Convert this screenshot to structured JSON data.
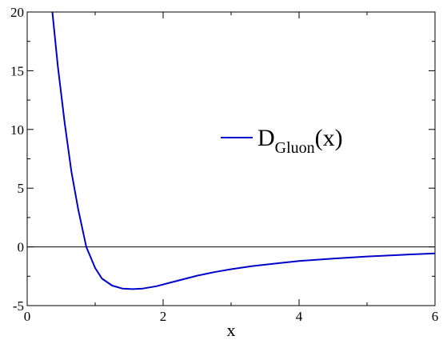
{
  "chart_data": {
    "type": "line",
    "xlabel": "x",
    "ylabel": "",
    "xlim": [
      0,
      6
    ],
    "ylim": [
      -5,
      20
    ],
    "xticks": [
      0,
      2,
      4,
      6
    ],
    "yticks": [
      -5,
      0,
      5,
      10,
      15,
      20
    ],
    "x_tick_labels": [
      "0",
      "2",
      "4",
      "6"
    ],
    "y_tick_labels": [
      "-5",
      "0",
      "5",
      "10",
      "15",
      "20"
    ],
    "zero_line": true,
    "grid": false,
    "legend_position": "upper-right",
    "legend": {
      "main": "D",
      "subscript": "Gluon",
      "suffix": "(x)"
    },
    "series": [
      {
        "name": "D_Gluon(x)",
        "color": "#0000cc",
        "points": [
          [
            0.37,
            20.0
          ],
          [
            0.45,
            15.4
          ],
          [
            0.55,
            10.6
          ],
          [
            0.65,
            6.4
          ],
          [
            0.75,
            3.2
          ],
          [
            0.87,
            0.0
          ],
          [
            1.0,
            -1.8
          ],
          [
            1.1,
            -2.7
          ],
          [
            1.25,
            -3.3
          ],
          [
            1.4,
            -3.55
          ],
          [
            1.55,
            -3.6
          ],
          [
            1.7,
            -3.55
          ],
          [
            1.9,
            -3.35
          ],
          [
            2.1,
            -3.05
          ],
          [
            2.3,
            -2.75
          ],
          [
            2.5,
            -2.45
          ],
          [
            2.75,
            -2.15
          ],
          [
            3.0,
            -1.9
          ],
          [
            3.3,
            -1.65
          ],
          [
            3.6,
            -1.45
          ],
          [
            4.0,
            -1.2
          ],
          [
            4.5,
            -1.0
          ],
          [
            5.0,
            -0.82
          ],
          [
            5.5,
            -0.68
          ],
          [
            6.0,
            -0.55
          ]
        ]
      }
    ]
  }
}
